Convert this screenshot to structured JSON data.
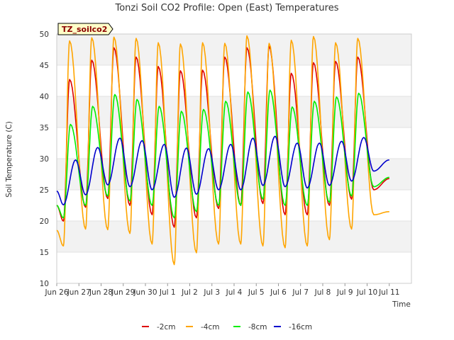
{
  "chart_data": {
    "type": "line",
    "title": "Tonzi Soil CO2 Profile: Open (East) Temperatures",
    "xlabel": "Time",
    "ylabel": "Soil Temperature (C)",
    "ylim": [
      10,
      50
    ],
    "xlim": [
      0,
      16
    ],
    "yticks": [
      10,
      15,
      20,
      25,
      30,
      35,
      40,
      45,
      50
    ],
    "xtick_labels": [
      "Jun 26",
      "Jun 27",
      "Jun 28",
      "Jun 29",
      "Jun 30",
      "Jul 1",
      "Jul 2",
      "Jul 3",
      "Jul 4",
      "Jul 5",
      "Jul 6",
      "Jul 7",
      "Jul 8",
      "Jul 9",
      "Jul 10",
      "Jul 11"
    ],
    "xtick_values": [
      0,
      1,
      2,
      3,
      4,
      5,
      6,
      7,
      8,
      9,
      10,
      11,
      12,
      13,
      14,
      15
    ],
    "grid": "horizontal bands",
    "legend_position": "bottom",
    "tag": "TZ_soilco2",
    "x_end": 15.0,
    "series": [
      {
        "name": "-2cm",
        "color": "#dd0000",
        "peak_x": 0.58,
        "start": 22.5,
        "end": 26.8,
        "maxs": [
          42.7,
          45.8,
          47.8,
          46.3,
          44.8,
          44.1,
          44.2,
          46.3,
          47.8,
          48.0,
          43.7,
          45.4,
          45.6,
          46.3
        ],
        "mins": [
          20.0,
          22.2,
          23.6,
          22.5,
          21.0,
          19.0,
          20.5,
          22.0,
          22.5,
          22.8,
          21.0,
          21.0,
          22.5,
          23.5,
          25.0
        ]
      },
      {
        "name": "-4cm",
        "color": "#ffa500",
        "peak_x": 0.58,
        "start": 18.5,
        "end": 21.5,
        "maxs": [
          48.9,
          49.4,
          49.5,
          49.3,
          48.6,
          48.4,
          48.6,
          48.5,
          49.7,
          48.5,
          49.0,
          49.6,
          48.6,
          49.3
        ],
        "mins": [
          16.0,
          18.7,
          18.6,
          18.0,
          16.3,
          13.0,
          14.9,
          16.3,
          16.3,
          16.0,
          15.7,
          16.0,
          17.0,
          18.7,
          21.0
        ]
      },
      {
        "name": "-8cm",
        "color": "#00ee00",
        "peak_x": 0.62,
        "start": 22.5,
        "end": 27.0,
        "maxs": [
          35.5,
          38.4,
          40.3,
          39.5,
          38.4,
          37.6,
          37.9,
          39.2,
          40.7,
          41.0,
          38.3,
          39.2,
          39.9,
          40.5
        ],
        "mins": [
          20.5,
          22.5,
          24.0,
          23.2,
          22.5,
          20.5,
          21.5,
          22.5,
          22.5,
          23.5,
          22.5,
          22.5,
          23.0,
          24.0,
          25.5
        ]
      },
      {
        "name": "-16cm",
        "color": "#0000cc",
        "peak_x": 0.85,
        "start": 24.8,
        "end": 29.8,
        "maxs": [
          29.8,
          31.8,
          33.3,
          32.9,
          32.3,
          31.7,
          31.6,
          32.3,
          33.3,
          33.6,
          32.5,
          32.5,
          32.8,
          33.4
        ],
        "mins": [
          22.6,
          24.2,
          25.8,
          25.5,
          25.0,
          23.8,
          24.3,
          25.0,
          25.0,
          25.7,
          25.5,
          25.3,
          25.7,
          26.4,
          28.0
        ]
      }
    ]
  }
}
